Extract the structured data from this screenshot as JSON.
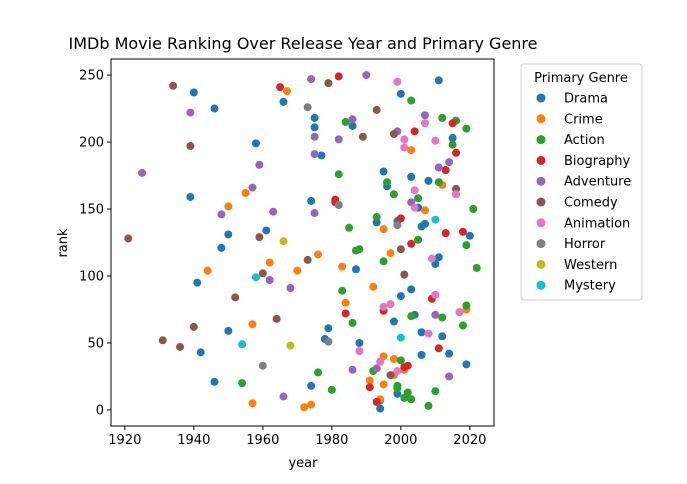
{
  "chart_data": {
    "type": "scatter",
    "title": "IMDb Movie Ranking Over Release Year and Primary Genre",
    "xlabel": "year",
    "ylabel": "rank",
    "xlim": [
      1916,
      2027
    ],
    "ylim": [
      -12,
      262
    ],
    "xticks": [
      1920,
      1940,
      1960,
      1980,
      2000,
      2020
    ],
    "yticks": [
      0,
      50,
      100,
      150,
      200,
      250
    ],
    "grid": false,
    "legend": {
      "title": "Primary Genre",
      "placement": "outside-right-top"
    },
    "series": [
      {
        "name": "Drama",
        "color": "#1f77b4",
        "points": [
          [
            1940,
            237
          ],
          [
            1946,
            225
          ],
          [
            1966,
            230
          ],
          [
            1975,
            218
          ],
          [
            1975,
            211
          ],
          [
            1977,
            190
          ],
          [
            1979,
            61
          ],
          [
            1978,
            53
          ],
          [
            1974,
            156
          ],
          [
            1958,
            199
          ],
          [
            1961,
            134
          ],
          [
            1948,
            121
          ],
          [
            1950,
            131
          ],
          [
            1941,
            95
          ],
          [
            1939,
            159
          ],
          [
            1942,
            43
          ],
          [
            1946,
            21
          ],
          [
            1950,
            59
          ],
          [
            1974,
            18
          ],
          [
            1987,
            105
          ],
          [
            1986,
            212
          ],
          [
            1988,
            50
          ],
          [
            1993,
            140
          ],
          [
            1995,
            178
          ],
          [
            1996,
            167
          ],
          [
            1994,
            7
          ],
          [
            1994,
            1
          ],
          [
            1998,
            66
          ],
          [
            1999,
            141
          ],
          [
            2000,
            236
          ],
          [
            2000,
            85
          ],
          [
            2003,
            174
          ],
          [
            2003,
            90
          ],
          [
            2004,
            71
          ],
          [
            2005,
            151
          ],
          [
            2006,
            137
          ],
          [
            2006,
            41
          ],
          [
            2006,
            58
          ],
          [
            2007,
            139
          ],
          [
            2008,
            171
          ],
          [
            2010,
            109
          ],
          [
            2011,
            246
          ],
          [
            2011,
            114
          ],
          [
            2012,
            55
          ],
          [
            2014,
            42
          ],
          [
            2015,
            203
          ],
          [
            2019,
            34
          ],
          [
            2020,
            130
          ],
          [
            1999,
            12
          ]
        ]
      },
      {
        "name": "Crime",
        "color": "#ff7f0e",
        "points": [
          [
            1967,
            238
          ],
          [
            1955,
            162
          ],
          [
            1950,
            152
          ],
          [
            1962,
            110
          ],
          [
            1944,
            104
          ],
          [
            1957,
            64
          ],
          [
            1957,
            5
          ],
          [
            1970,
            104
          ],
          [
            1976,
            116
          ],
          [
            1972,
            2
          ],
          [
            1974,
            4
          ],
          [
            1983,
            107
          ],
          [
            1984,
            80
          ],
          [
            1992,
            92
          ],
          [
            1991,
            22
          ],
          [
            1995,
            40
          ],
          [
            1995,
            19
          ],
          [
            1994,
            8
          ],
          [
            1995,
            135
          ],
          [
            1997,
            117
          ],
          [
            1998,
            38
          ],
          [
            1998,
            26
          ],
          [
            2001,
            30
          ],
          [
            2003,
            194
          ],
          [
            2007,
            149
          ],
          [
            2012,
            168
          ],
          [
            2019,
            75
          ]
        ]
      },
      {
        "name": "Action",
        "color": "#2ca02c",
        "points": [
          [
            1954,
            20
          ],
          [
            1976,
            28
          ],
          [
            1980,
            15
          ],
          [
            1982,
            176
          ],
          [
            1983,
            89
          ],
          [
            1985,
            136
          ],
          [
            1986,
            65
          ],
          [
            1987,
            119
          ],
          [
            1988,
            120
          ],
          [
            1992,
            29
          ],
          [
            1993,
            144
          ],
          [
            1995,
            111
          ],
          [
            1996,
            170
          ],
          [
            1998,
            161
          ],
          [
            1999,
            18
          ],
          [
            1999,
            16
          ],
          [
            2001,
            9
          ],
          [
            2002,
            13
          ],
          [
            2003,
            8
          ],
          [
            2003,
            231
          ],
          [
            2003,
            70
          ],
          [
            2005,
            127
          ],
          [
            2005,
            158
          ],
          [
            2008,
            3
          ],
          [
            2010,
            14
          ],
          [
            2011,
            170
          ],
          [
            2012,
            69
          ],
          [
            2012,
            218
          ],
          [
            2015,
            198
          ],
          [
            2016,
            216
          ],
          [
            2018,
            63
          ],
          [
            2019,
            78
          ],
          [
            2019,
            210
          ],
          [
            2019,
            123
          ],
          [
            2021,
            150
          ],
          [
            2022,
            106
          ],
          [
            1984,
            215
          ],
          [
            2000,
            37
          ]
        ]
      },
      {
        "name": "Biography",
        "color": "#d62728",
        "points": [
          [
            1965,
            241
          ],
          [
            1982,
            249
          ],
          [
            1981,
            157
          ],
          [
            1981,
            155
          ],
          [
            1984,
            72
          ],
          [
            1991,
            17
          ],
          [
            1993,
            6
          ],
          [
            1995,
            74
          ],
          [
            2000,
            143
          ],
          [
            2001,
            32
          ],
          [
            2002,
            33
          ],
          [
            2003,
            124
          ],
          [
            2004,
            208
          ],
          [
            2009,
            83
          ],
          [
            2011,
            46
          ],
          [
            2013,
            132
          ],
          [
            2013,
            179
          ],
          [
            2015,
            214
          ],
          [
            2016,
            192
          ],
          [
            2018,
            133
          ]
        ]
      },
      {
        "name": "Adventure",
        "color": "#9467bd",
        "points": [
          [
            1925,
            177
          ],
          [
            1939,
            222
          ],
          [
            1948,
            146
          ],
          [
            1957,
            166
          ],
          [
            1959,
            183
          ],
          [
            1962,
            97
          ],
          [
            1963,
            148
          ],
          [
            1966,
            10
          ],
          [
            1968,
            91
          ],
          [
            1974,
            247
          ],
          [
            1975,
            204
          ],
          [
            1975,
            191
          ],
          [
            1975,
            147
          ],
          [
            1982,
            202
          ],
          [
            1986,
            217
          ],
          [
            1986,
            30
          ],
          [
            1990,
            250
          ],
          [
            1993,
            31
          ],
          [
            1999,
            208
          ],
          [
            2003,
            155
          ],
          [
            2007,
            220
          ],
          [
            2010,
            71
          ],
          [
            2011,
            181
          ],
          [
            2014,
            25
          ],
          [
            2014,
            185
          ]
        ]
      },
      {
        "name": "Comedy",
        "color": "#8c564b",
        "points": [
          [
            1921,
            128
          ],
          [
            1931,
            52
          ],
          [
            1934,
            242
          ],
          [
            1936,
            47
          ],
          [
            1939,
            197
          ],
          [
            1940,
            62
          ],
          [
            1952,
            84
          ],
          [
            1959,
            129
          ],
          [
            1960,
            102
          ],
          [
            1964,
            68
          ],
          [
            1973,
            112
          ],
          [
            1979,
            244
          ],
          [
            1989,
            204
          ],
          [
            1993,
            224
          ],
          [
            1997,
            26
          ],
          [
            1998,
            206
          ],
          [
            2000,
            120
          ],
          [
            2001,
            101
          ],
          [
            2016,
            165
          ]
        ]
      },
      {
        "name": "Animation",
        "color": "#e377c2",
        "points": [
          [
            1988,
            44
          ],
          [
            1994,
            36
          ],
          [
            1995,
            77
          ],
          [
            1997,
            79
          ],
          [
            1999,
            245
          ],
          [
            2001,
            196
          ],
          [
            2001,
            202
          ],
          [
            2004,
            164
          ],
          [
            2004,
            151
          ],
          [
            2007,
            214
          ],
          [
            2008,
            57
          ],
          [
            2009,
            113
          ],
          [
            2010,
            86
          ],
          [
            2010,
            201
          ],
          [
            2016,
            161
          ],
          [
            2017,
            73
          ],
          [
            1999,
            29
          ]
        ]
      },
      {
        "name": "Horror",
        "color": "#7f7f7f",
        "points": [
          [
            1960,
            33
          ],
          [
            1973,
            226
          ],
          [
            1979,
            51
          ],
          [
            1982,
            153
          ],
          [
            1999,
            138
          ]
        ]
      },
      {
        "name": "Western",
        "color": "#bcbd22",
        "points": [
          [
            1966,
            126
          ],
          [
            1968,
            48
          ]
        ]
      },
      {
        "name": "Mystery",
        "color": "#17becf",
        "points": [
          [
            1954,
            49
          ],
          [
            1958,
            99
          ],
          [
            2000,
            54
          ],
          [
            2010,
            142
          ]
        ]
      }
    ]
  }
}
